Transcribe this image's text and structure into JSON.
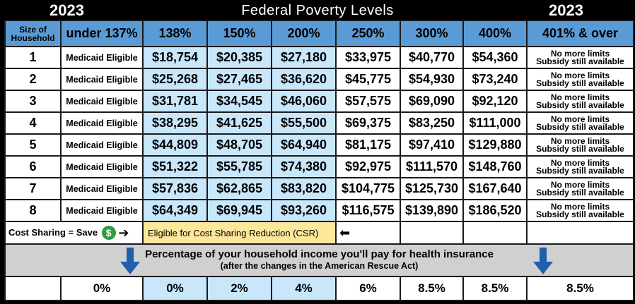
{
  "header": {
    "year_left": "2023",
    "title": "Federal Poverty Levels",
    "year_right": "2023"
  },
  "columns": {
    "size": "Size of Household",
    "c0": "under 137%",
    "c1": "138%",
    "c2": "150%",
    "c3": "200%",
    "c4": "250%",
    "c5": "300%",
    "c6": "400%",
    "c7": "401% & over"
  },
  "rows": [
    {
      "size": "1",
      "elig": "Medicaid Eligible",
      "v": [
        "$18,754",
        "$20,385",
        "$27,180",
        "$33,975",
        "$40,770",
        "$54,360"
      ],
      "l1": "No more limits",
      "l2": "Subsidy still available"
    },
    {
      "size": "2",
      "elig": "Medicaid Eligible",
      "v": [
        "$25,268",
        "$27,465",
        "$36,620",
        "$45,775",
        "$54,930",
        "$73,240"
      ],
      "l1": "No more limits",
      "l2": "Subsidy still available"
    },
    {
      "size": "3",
      "elig": "Medicaid Eligible",
      "v": [
        "$31,781",
        "$34,545",
        "$46,060",
        "$57,575",
        "$69,090",
        "$92,120"
      ],
      "l1": "No more limits",
      "l2": "Subsidy still available"
    },
    {
      "size": "4",
      "elig": "Medicaid Eligible",
      "v": [
        "$38,295",
        "$41,625",
        "$55,500",
        "$69,375",
        "$83,250",
        "$111,000"
      ],
      "l1": "No more limits",
      "l2": "Subsidy still available"
    },
    {
      "size": "5",
      "elig": "Medicaid Eligible",
      "v": [
        "$44,809",
        "$48,705",
        "$64,940",
        "$81,175",
        "$97,410",
        "$129,880"
      ],
      "l1": "No more limits",
      "l2": "Subsidy still available"
    },
    {
      "size": "6",
      "elig": "Medicaid Eligible",
      "v": [
        "$51,322",
        "$55,785",
        "$74,380",
        "$92,975",
        "$111,570",
        "$148,760"
      ],
      "l1": "No more limits",
      "l2": "Subsidy still available"
    },
    {
      "size": "7",
      "elig": "Medicaid Eligible",
      "v": [
        "$57,836",
        "$62,865",
        "$83,820",
        "$104,775",
        "$125,730",
        "$167,640"
      ],
      "l1": "No more limits",
      "l2": "Subsidy still available"
    },
    {
      "size": "8",
      "elig": "Medicaid Eligible",
      "v": [
        "$64,349",
        "$69,945",
        "$93,260",
        "$116,575",
        "$139,890",
        "$186,520"
      ],
      "l1": "No more limits",
      "l2": "Subsidy still available"
    }
  ],
  "cost_sharing": {
    "label": "Cost Sharing = Save",
    "dollar": "$",
    "csr_text": "Eligible for Cost Sharing Reduction (CSR)"
  },
  "band": {
    "main": "Percentage of your household income you'll pay for health insurance",
    "sub": "(after the changes in the American Rescue Act)"
  },
  "percentages": [
    "0%",
    "0%",
    "2%",
    "4%",
    "6%",
    "8.5%",
    "8.5%",
    "8.5%"
  ],
  "colors": {
    "header_blue": "#5b9bd5",
    "light_blue": "#c9e7fb",
    "csr_yellow": "#fde79a",
    "band_gray": "#d0d0d0",
    "arrow_blue": "#1f5fae",
    "dollar_green": "#2e9e3e"
  },
  "icons": [
    "dollar-icon",
    "arrow-right-icon",
    "arrow-left-icon",
    "down-arrow-icon"
  ]
}
